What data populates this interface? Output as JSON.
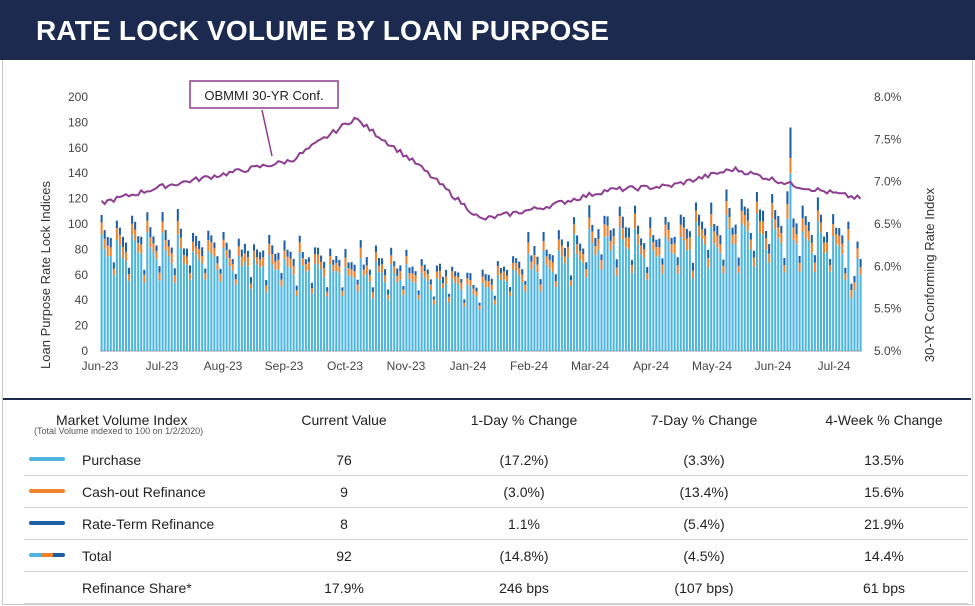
{
  "header": {
    "title": "RATE LOCK VOLUME BY LOAN PURPOSE"
  },
  "chart_data": {
    "type": "bar",
    "stacked": true,
    "ylabel": "Loan Purpose Rate Lock Indices",
    "y2label": "30-YR Conforming Rate Index",
    "ylim": [
      0,
      200
    ],
    "y2lim": [
      5.0,
      8.0
    ],
    "y_ticks": [
      "0",
      "20",
      "40",
      "60",
      "80",
      "100",
      "120",
      "140",
      "160",
      "180",
      "200"
    ],
    "y2_ticks": [
      "5.0%",
      "5.5%",
      "6.0%",
      "6.5%",
      "7.0%",
      "7.5%",
      "8.0%"
    ],
    "x_tick_labels": [
      "Jun-23",
      "Jul-23",
      "Aug-23",
      "Sep-23",
      "Oct-23",
      "Nov-23",
      "Jan-24",
      "Feb-24",
      "Mar-24",
      "Apr-24",
      "May-24",
      "Jun-24",
      "Jul-24"
    ],
    "annotation": "OBMMI 30-YR Conf.",
    "series": [
      {
        "name": "Purchase",
        "color": "#4cb5df"
      },
      {
        "name": "Cash-out Refinance",
        "color": "#f0822c"
      },
      {
        "name": "Rate-Term Refinance",
        "color": "#1c5fa8"
      },
      {
        "name": "OBMMI 30-YR Conf.",
        "color": "#8e3d91",
        "axis": "right"
      }
    ],
    "monthly_anchor_values": {
      "purchase_approx": [
        82,
        78,
        72,
        65,
        62,
        57,
        48,
        70,
        85,
        80,
        92,
        90,
        78
      ],
      "rate_30yr_approx": [
        6.75,
        6.95,
        7.1,
        7.25,
        7.75,
        7.2,
        6.55,
        6.7,
        6.9,
        6.95,
        7.15,
        6.95,
        6.8
      ]
    }
  },
  "table": {
    "columns": [
      "Market Volume Index",
      "Current Value",
      "1-Day % Change",
      "7-Day % Change",
      "4-Week % Change"
    ],
    "subnote": "(Total Volume indexed to 100 on 1/2/2020)",
    "rows": [
      {
        "label": "Purchase",
        "color": "#4cb5df",
        "current": "76",
        "d1": "(17.2%)",
        "d7": "(3.3%)",
        "w4": "13.5%"
      },
      {
        "label": "Cash-out Refinance",
        "color": "#f0822c",
        "current": "9",
        "d1": "(3.0%)",
        "d7": "(13.4%)",
        "w4": "15.6%"
      },
      {
        "label": "Rate-Term Refinance",
        "color": "#1c5fa8",
        "current": "8",
        "d1": "1.1%",
        "d7": "(5.4%)",
        "w4": "21.9%"
      },
      {
        "label": "Total",
        "color": "mixed",
        "current": "92",
        "d1": "(14.8%)",
        "d7": "(4.5%)",
        "w4": "14.4%"
      },
      {
        "label": "Refinance Share*",
        "color": "",
        "current": "17.9%",
        "d1": "246 bps",
        "d7": "(107 bps)",
        "w4": "61 bps"
      }
    ]
  }
}
